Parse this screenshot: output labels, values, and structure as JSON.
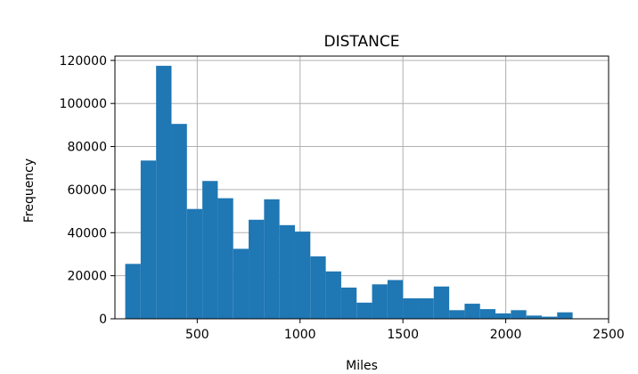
{
  "chart_data": {
    "type": "bar",
    "title": "DISTANCE",
    "xlabel": "Miles",
    "ylabel": "Frequency",
    "bar_color": "#1f77b4",
    "grid": true,
    "xlim": [
      100,
      2500
    ],
    "ylim": [
      0,
      122000
    ],
    "x_ticks": [
      500,
      1000,
      1500,
      2000,
      2500
    ],
    "y_ticks": [
      0,
      20000,
      40000,
      60000,
      80000,
      100000,
      120000
    ],
    "bin_edges": [
      150,
      225,
      300,
      375,
      450,
      525,
      600,
      675,
      750,
      825,
      900,
      975,
      1050,
      1125,
      1200,
      1275,
      1350,
      1425,
      1500,
      1575,
      1650,
      1725,
      1800,
      1875,
      1950,
      2025,
      2100,
      2175,
      2250,
      2325,
      2400
    ],
    "values": [
      25500,
      73500,
      117500,
      90500,
      51000,
      64000,
      56000,
      32500,
      46000,
      55500,
      43500,
      40500,
      29000,
      22000,
      14500,
      7500,
      16000,
      18000,
      9500,
      9500,
      15000,
      4000,
      7000,
      4500,
      2500,
      4000,
      1500,
      1000,
      3000,
      0
    ]
  }
}
